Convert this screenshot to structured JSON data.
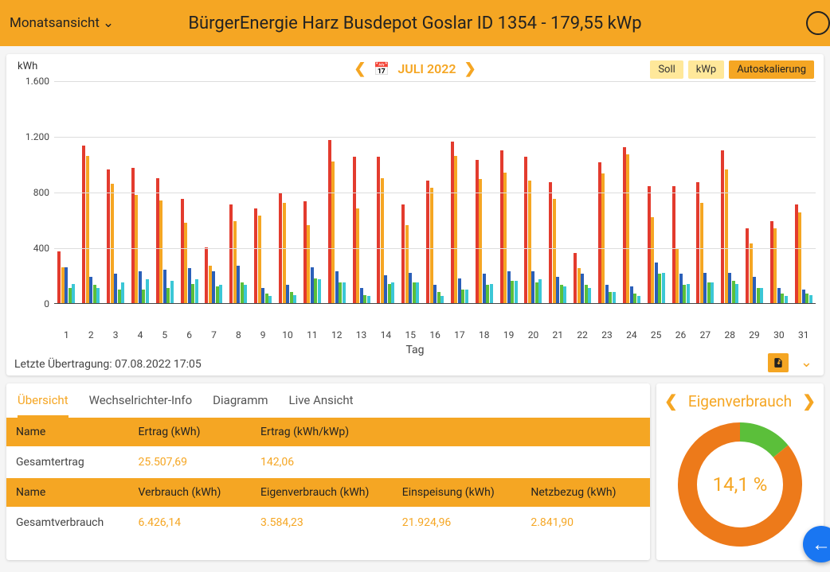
{
  "header": {
    "view_label": "Monatsansicht",
    "title": "BürgerEnergie Harz Busdepot Goslar ID 1354 - 179,55 kWp"
  },
  "chart": {
    "y_label": "kWh",
    "date_label": "JULI 2022",
    "toolbar": {
      "soll": "Soll",
      "kwp": "kWp",
      "auto": "Autoskalierung"
    },
    "y_max": 1600,
    "y_ticks": [
      0,
      400,
      800,
      1200,
      1600
    ],
    "x_title": "Tag",
    "colors": {
      "red": "#e33b2e",
      "orange": "#f5a623",
      "blue": "#2b5fb8",
      "green": "#5bbf3a",
      "cyan": "#3bc7d6",
      "grid": "#dddddd"
    },
    "days": [
      {
        "d": 1,
        "r": 370,
        "o": 260,
        "b": 260,
        "g": 110,
        "c": 140
      },
      {
        "d": 2,
        "r": 1130,
        "o": 1060,
        "b": 190,
        "g": 130,
        "c": 110
      },
      {
        "d": 3,
        "r": 960,
        "o": 860,
        "b": 210,
        "g": 100,
        "c": 150
      },
      {
        "d": 4,
        "r": 970,
        "o": 780,
        "b": 230,
        "g": 100,
        "c": 170
      },
      {
        "d": 5,
        "r": 900,
        "o": 740,
        "b": 240,
        "g": 110,
        "c": 160
      },
      {
        "d": 6,
        "r": 750,
        "o": 580,
        "b": 250,
        "g": 140,
        "c": 170
      },
      {
        "d": 7,
        "r": 400,
        "o": 270,
        "b": 230,
        "g": 120,
        "c": 130
      },
      {
        "d": 8,
        "r": 710,
        "o": 590,
        "b": 270,
        "g": 150,
        "c": 130
      },
      {
        "d": 9,
        "r": 680,
        "o": 630,
        "b": 110,
        "g": 70,
        "c": 50
      },
      {
        "d": 10,
        "r": 790,
        "o": 720,
        "b": 130,
        "g": 80,
        "c": 60
      },
      {
        "d": 11,
        "r": 730,
        "o": 560,
        "b": 260,
        "g": 180,
        "c": 170
      },
      {
        "d": 12,
        "r": 1170,
        "o": 1020,
        "b": 230,
        "g": 150,
        "c": 150
      },
      {
        "d": 13,
        "r": 1050,
        "o": 680,
        "b": 110,
        "g": 60,
        "c": 50
      },
      {
        "d": 14,
        "r": 1050,
        "o": 900,
        "b": 200,
        "g": 140,
        "c": 150
      },
      {
        "d": 15,
        "r": 710,
        "o": 560,
        "b": 220,
        "g": 150,
        "c": 150
      },
      {
        "d": 16,
        "r": 880,
        "o": 830,
        "b": 130,
        "g": 80,
        "c": 50
      },
      {
        "d": 17,
        "r": 1160,
        "o": 1060,
        "b": 180,
        "g": 100,
        "c": 100
      },
      {
        "d": 18,
        "r": 1030,
        "o": 890,
        "b": 210,
        "g": 130,
        "c": 140
      },
      {
        "d": 19,
        "r": 1100,
        "o": 940,
        "b": 230,
        "g": 160,
        "c": 160
      },
      {
        "d": 20,
        "r": 1050,
        "o": 880,
        "b": 230,
        "g": 150,
        "c": 170
      },
      {
        "d": 21,
        "r": 870,
        "o": 750,
        "b": 190,
        "g": 130,
        "c": 120
      },
      {
        "d": 22,
        "r": 360,
        "o": 250,
        "b": 210,
        "g": 130,
        "c": 110
      },
      {
        "d": 23,
        "r": 1010,
        "o": 930,
        "b": 130,
        "g": 80,
        "c": 80
      },
      {
        "d": 24,
        "r": 1120,
        "o": 1070,
        "b": 120,
        "g": 70,
        "c": 50
      },
      {
        "d": 25,
        "r": 840,
        "o": 620,
        "b": 290,
        "g": 210,
        "c": 220
      },
      {
        "d": 26,
        "r": 840,
        "o": 390,
        "b": 210,
        "g": 130,
        "c": 140
      },
      {
        "d": 27,
        "r": 870,
        "o": 720,
        "b": 220,
        "g": 150,
        "c": 150
      },
      {
        "d": 28,
        "r": 1100,
        "o": 960,
        "b": 220,
        "g": 160,
        "c": 140
      },
      {
        "d": 29,
        "r": 540,
        "o": 430,
        "b": 190,
        "g": 110,
        "c": 110
      },
      {
        "d": 30,
        "r": 590,
        "o": 540,
        "b": 110,
        "g": 70,
        "c": 50
      },
      {
        "d": 31,
        "r": 710,
        "o": 650,
        "b": 100,
        "g": 70,
        "c": 60
      }
    ],
    "last_transfer": "Letzte Übertragung: 07.08.2022 17:05"
  },
  "tabs": {
    "overview": "Übersicht",
    "inverter": "Wechselrichter-Info",
    "diagram": "Diagramm",
    "live": "Live Ansicht"
  },
  "table1": {
    "h_name": "Name",
    "h_ertrag": "Ertrag (kWh)",
    "h_ertrag_kwp": "Ertrag (kWh/kWp)",
    "row_label": "Gesamtertrag",
    "v_ertrag": "25.507,69",
    "v_ertrag_kwp": "142,06"
  },
  "table2": {
    "h_name": "Name",
    "h_verbrauch": "Verbrauch (kWh)",
    "h_eigen": "Eigenverbrauch (kWh)",
    "h_einsp": "Einspeisung (kWh)",
    "h_netz": "Netzbezug (kWh)",
    "row_label": "Gesamtverbrauch",
    "v_verbrauch": "6.426,14",
    "v_eigen": "3.584,23",
    "v_einsp": "21.924,96",
    "v_netz": "2.841,90"
  },
  "donut": {
    "title": "Eigenverbrauch",
    "percent_label": "14,1 %",
    "percent": 14.1,
    "colors": {
      "main": "#ed7a1a",
      "slice": "#5bbf3a",
      "bg": "#ffffff"
    },
    "thickness": 24
  }
}
